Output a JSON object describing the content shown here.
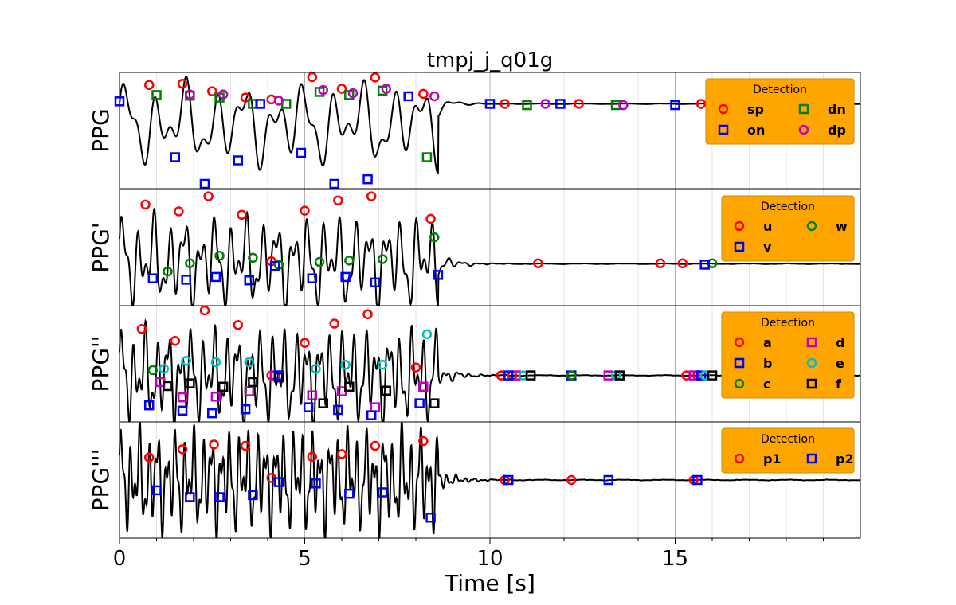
{
  "chart_data": {
    "type": "line",
    "title": "tmpj_j_q01g",
    "xlabel": "Time [s]",
    "xlim": [
      0,
      20
    ],
    "xticks": [
      0,
      5,
      10,
      15
    ],
    "xtick_labels": [
      "0",
      "5",
      "10",
      "15"
    ],
    "grid": "major and minor vertical grid lines",
    "legend_title": "Detection",
    "legend_placement": "top-right",
    "colors": {
      "signal": "#000000",
      "legend_bg": "#FFA500",
      "red": "#ff0000",
      "blue": "#0000ff",
      "green": "#008000",
      "magenta": "#c000c0",
      "cyan": "#00bfbf",
      "black": "#000000"
    },
    "panels": [
      {
        "ylabel": "PPG",
        "legend": [
          {
            "label": "sp",
            "marker": "circle",
            "color": "#ff0000"
          },
          {
            "label": "dn",
            "marker": "square",
            "color": "#008000"
          },
          {
            "label": "on",
            "marker": "square",
            "color": "#0000ff"
          },
          {
            "label": "dp",
            "marker": "circle",
            "color": "#c000c0"
          }
        ],
        "series": [
          {
            "name": "sp",
            "marker": "circle",
            "color": "#ff0000",
            "points": [
              [
                0.8,
                0.8
              ],
              [
                1.7,
                0.82
              ],
              [
                2.5,
                0.7
              ],
              [
                3.4,
                0.6
              ],
              [
                4.1,
                0.57
              ],
              [
                5.2,
                0.95
              ],
              [
                6.0,
                0.74
              ],
              [
                6.9,
                0.92
              ],
              [
                8.2,
                0.66
              ],
              [
                10.4,
                0.5
              ],
              [
                12.4,
                0.5
              ],
              [
                15.7,
                0.5
              ]
            ]
          },
          {
            "name": "dn",
            "marker": "square",
            "color": "#008000",
            "points": [
              [
                1.0,
                0.64
              ],
              [
                1.9,
                0.63
              ],
              [
                2.7,
                0.6
              ],
              [
                3.6,
                0.5
              ],
              [
                4.5,
                0.5
              ],
              [
                5.4,
                0.69
              ],
              [
                6.2,
                0.64
              ],
              [
                7.1,
                0.71
              ],
              [
                8.3,
                -0.35
              ],
              [
                11.0,
                0.48
              ],
              [
                13.4,
                0.48
              ]
            ]
          },
          {
            "name": "on",
            "marker": "square",
            "color": "#0000ff",
            "points": [
              [
                0.0,
                0.54
              ],
              [
                1.5,
                -0.35
              ],
              [
                2.3,
                -0.8
              ],
              [
                3.2,
                -0.4
              ],
              [
                3.8,
                0.5
              ],
              [
                4.9,
                -0.28
              ],
              [
                5.8,
                -0.8
              ],
              [
                6.7,
                -0.7
              ],
              [
                7.8,
                0.62
              ],
              [
                10.0,
                0.5
              ],
              [
                11.9,
                0.5
              ],
              [
                15.0,
                0.48
              ]
            ]
          },
          {
            "name": "dp",
            "marker": "circle",
            "color": "#c000c0",
            "points": [
              [
                1.9,
                0.65
              ],
              [
                2.8,
                0.65
              ],
              [
                4.3,
                0.55
              ],
              [
                5.5,
                0.72
              ],
              [
                6.3,
                0.67
              ],
              [
                7.2,
                0.74
              ],
              [
                8.5,
                0.62
              ],
              [
                11.5,
                0.5
              ],
              [
                13.6,
                0.48
              ]
            ]
          }
        ]
      },
      {
        "ylabel": "PPG'",
        "legend": [
          {
            "label": "u",
            "marker": "circle",
            "color": "#ff0000"
          },
          {
            "label": "w",
            "marker": "circle",
            "color": "#008000"
          },
          {
            "label": "v",
            "marker": "square",
            "color": "#0000ff"
          }
        ],
        "series": [
          {
            "name": "u",
            "marker": "circle",
            "color": "#ff0000",
            "points": [
              [
                0.7,
                0.88
              ],
              [
                1.6,
                0.78
              ],
              [
                2.4,
                1.0
              ],
              [
                3.3,
                0.73
              ],
              [
                4.1,
                0.05
              ],
              [
                5.0,
                0.79
              ],
              [
                5.9,
                0.94
              ],
              [
                6.8,
                1.0
              ],
              [
                8.4,
                0.67
              ],
              [
                11.3,
                0.02
              ],
              [
                14.6,
                0.02
              ],
              [
                15.2,
                0.02
              ]
            ]
          },
          {
            "name": "w",
            "marker": "circle",
            "color": "#008000",
            "points": [
              [
                1.3,
                -0.1
              ],
              [
                1.9,
                0.02
              ],
              [
                2.7,
                0.13
              ],
              [
                3.6,
                0.1
              ],
              [
                4.3,
                0.0
              ],
              [
                5.4,
                0.04
              ],
              [
                6.2,
                0.06
              ],
              [
                7.1,
                0.08
              ],
              [
                8.5,
                0.4
              ],
              [
                16.0,
                0.02
              ]
            ]
          },
          {
            "name": "v",
            "marker": "square",
            "color": "#0000ff",
            "points": [
              [
                0.9,
                -0.2
              ],
              [
                1.8,
                -0.22
              ],
              [
                2.6,
                -0.18
              ],
              [
                3.5,
                -0.23
              ],
              [
                4.2,
                -0.02
              ],
              [
                5.2,
                -0.2
              ],
              [
                6.1,
                -0.18
              ],
              [
                6.9,
                -0.26
              ],
              [
                8.6,
                -0.15
              ],
              [
                15.8,
                0.0
              ]
            ]
          }
        ]
      },
      {
        "ylabel": "PPG''",
        "legend": [
          {
            "label": "a",
            "marker": "circle",
            "color": "#ff0000"
          },
          {
            "label": "d",
            "marker": "square",
            "color": "#c000c0"
          },
          {
            "label": "b",
            "marker": "square",
            "color": "#0000ff"
          },
          {
            "label": "e",
            "marker": "circle",
            "color": "#00bfbf"
          },
          {
            "label": "c",
            "marker": "circle",
            "color": "#008000"
          },
          {
            "label": "f",
            "marker": "square",
            "color": "#000000"
          }
        ],
        "series": [
          {
            "name": "a",
            "marker": "circle",
            "color": "#ff0000",
            "points": [
              [
                0.6,
                0.7
              ],
              [
                1.5,
                0.52
              ],
              [
                2.3,
                0.98
              ],
              [
                3.2,
                0.76
              ],
              [
                4.1,
                0.0
              ],
              [
                5.0,
                0.49
              ],
              [
                5.8,
                0.78
              ],
              [
                6.7,
                0.92
              ],
              [
                8.0,
                0.12
              ],
              [
                10.3,
                0.0
              ],
              [
                10.6,
                0.0
              ],
              [
                12.2,
                0.0
              ],
              [
                15.3,
                0.0
              ],
              [
                15.6,
                0.0
              ]
            ]
          },
          {
            "name": "d",
            "marker": "square",
            "color": "#c000c0",
            "points": [
              [
                1.1,
                -0.1
              ],
              [
                1.7,
                -0.33
              ],
              [
                2.6,
                -0.32
              ],
              [
                3.5,
                -0.24
              ],
              [
                4.2,
                0.0
              ],
              [
                5.2,
                -0.3
              ],
              [
                6.0,
                -0.24
              ],
              [
                6.9,
                -0.48
              ],
              [
                8.2,
                -0.17
              ],
              [
                10.7,
                0.0
              ],
              [
                13.2,
                0.0
              ],
              [
                15.5,
                0.0
              ]
            ]
          },
          {
            "name": "b",
            "marker": "square",
            "color": "#0000ff",
            "points": [
              [
                0.8,
                -0.45
              ],
              [
                1.7,
                -0.53
              ],
              [
                2.5,
                -0.57
              ],
              [
                3.4,
                -0.51
              ],
              [
                4.3,
                0.0
              ],
              [
                5.1,
                -0.48
              ],
              [
                5.9,
                -0.52
              ],
              [
                6.8,
                -0.6
              ],
              [
                8.1,
                -0.42
              ],
              [
                10.5,
                0.0
              ],
              [
                12.2,
                0.0
              ],
              [
                15.7,
                0.0
              ]
            ]
          },
          {
            "name": "e",
            "marker": "circle",
            "color": "#00bfbf",
            "points": [
              [
                1.2,
                0.1
              ],
              [
                1.8,
                0.22
              ],
              [
                2.6,
                0.2
              ],
              [
                3.5,
                0.2
              ],
              [
                5.3,
                0.1
              ],
              [
                6.1,
                0.16
              ],
              [
                7.1,
                0.16
              ],
              [
                8.3,
                0.62
              ],
              [
                10.9,
                0.0
              ],
              [
                13.4,
                0.0
              ],
              [
                15.8,
                0.0
              ]
            ]
          },
          {
            "name": "c",
            "marker": "circle",
            "color": "#008000",
            "points": [
              [
                0.9,
                0.08
              ],
              [
                12.2,
                0.0
              ]
            ]
          },
          {
            "name": "f",
            "marker": "square",
            "color": "#000000",
            "points": [
              [
                1.3,
                -0.16
              ],
              [
                1.9,
                -0.12
              ],
              [
                2.8,
                -0.17
              ],
              [
                3.6,
                -0.1
              ],
              [
                4.3,
                -0.03
              ],
              [
                5.5,
                -0.42
              ],
              [
                6.2,
                -0.17
              ],
              [
                7.2,
                -0.23
              ],
              [
                8.5,
                -0.42
              ],
              [
                11.1,
                0.0
              ],
              [
                13.5,
                0.0
              ],
              [
                16.0,
                0.0
              ]
            ]
          }
        ]
      },
      {
        "ylabel": "PPG'''",
        "legend": [
          {
            "label": "p1",
            "marker": "circle",
            "color": "#ff0000"
          },
          {
            "label": "p2",
            "marker": "square",
            "color": "#0000ff"
          }
        ],
        "series": [
          {
            "name": "p1",
            "marker": "circle",
            "color": "#ff0000",
            "points": [
              [
                0.8,
                0.33
              ],
              [
                1.7,
                0.45
              ],
              [
                2.55,
                0.52
              ],
              [
                3.4,
                0.5
              ],
              [
                4.1,
                0.03
              ],
              [
                5.2,
                0.34
              ],
              [
                6.0,
                0.38
              ],
              [
                6.9,
                0.5
              ],
              [
                8.2,
                0.57
              ],
              [
                10.4,
                0.0
              ],
              [
                12.2,
                0.0
              ],
              [
                15.5,
                0.0
              ]
            ]
          },
          {
            "name": "p2",
            "marker": "square",
            "color": "#0000ff",
            "points": [
              [
                1.0,
                -0.15
              ],
              [
                1.9,
                -0.25
              ],
              [
                2.7,
                -0.25
              ],
              [
                3.6,
                -0.22
              ],
              [
                4.3,
                -0.03
              ],
              [
                5.3,
                -0.05
              ],
              [
                6.2,
                -0.2
              ],
              [
                7.1,
                -0.18
              ],
              [
                8.4,
                -0.55
              ],
              [
                10.5,
                0.0
              ],
              [
                13.2,
                0.0
              ],
              [
                15.6,
                0.0
              ]
            ]
          }
        ]
      }
    ]
  }
}
